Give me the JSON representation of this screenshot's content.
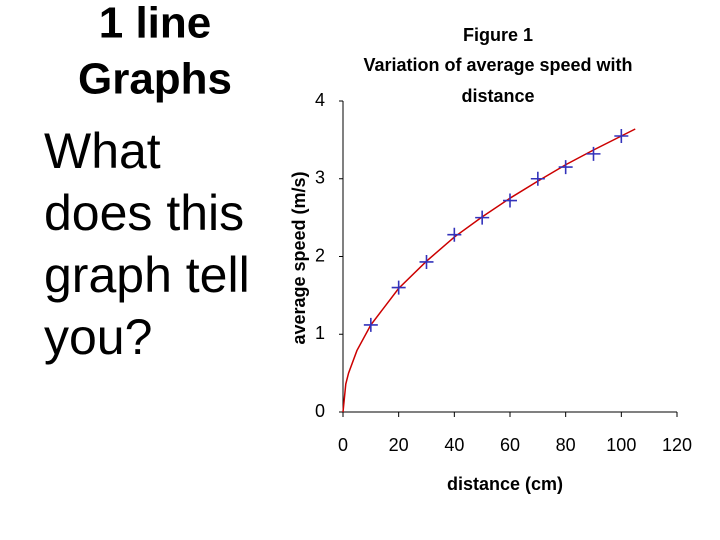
{
  "slide": {
    "title": [
      "1 line",
      "Graphs"
    ],
    "body": [
      "What",
      "does this",
      "graph tell",
      "you?"
    ]
  },
  "chart_data": {
    "type": "scatter",
    "title": [
      "Figure 1",
      "Variation of average speed with",
      "distance"
    ],
    "x_label": "distance (cm)",
    "y_label": "average speed (m/s)",
    "xlim": [
      0,
      120
    ],
    "ylim": [
      0,
      4
    ],
    "xticks": [
      0,
      20,
      40,
      60,
      80,
      100,
      120
    ],
    "yticks": [
      0,
      1,
      2,
      3,
      4
    ],
    "grid": false,
    "series": [
      {
        "type": "line",
        "color": "#cc0000",
        "x": [
          0,
          1,
          2,
          5,
          10,
          20,
          30,
          40,
          50,
          60,
          70,
          80,
          90,
          100,
          105
        ],
        "values": [
          0,
          0.36,
          0.5,
          0.79,
          1.12,
          1.59,
          1.94,
          2.25,
          2.51,
          2.75,
          2.97,
          3.18,
          3.37,
          3.55,
          3.64
        ]
      },
      {
        "type": "scatter",
        "marker": "plus",
        "color": "#3333bb",
        "x": [
          10,
          20,
          30,
          40,
          50,
          60,
          70,
          80,
          90,
          100
        ],
        "values": [
          1.12,
          1.6,
          1.93,
          2.28,
          2.5,
          2.72,
          3.0,
          3.15,
          3.32,
          3.55
        ]
      }
    ]
  }
}
